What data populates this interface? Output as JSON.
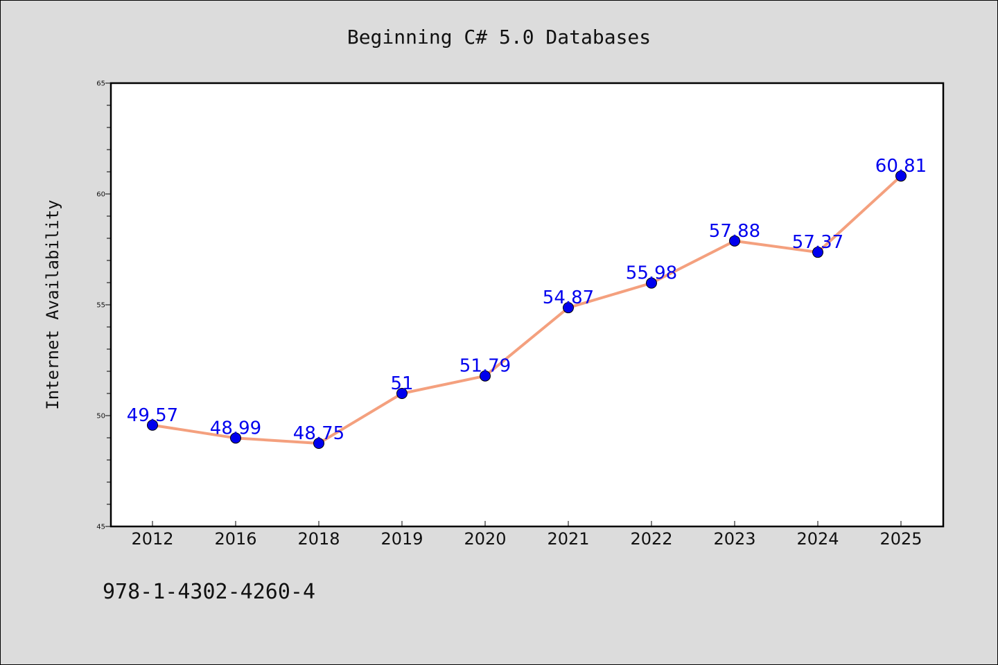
{
  "chart_data": {
    "type": "line",
    "title": "Beginning C# 5.0 Databases",
    "xlabel": "",
    "ylabel": "Internet Availability",
    "categories": [
      "2012",
      "2016",
      "2018",
      "2019",
      "2020",
      "2021",
      "2022",
      "2023",
      "2024",
      "2025"
    ],
    "series": [
      {
        "values": [
          49.57,
          48.99,
          48.75,
          51,
          51.79,
          54.87,
          55.98,
          57.88,
          57.37,
          60.81
        ],
        "labels": [
          "49.57",
          "48.99",
          "48.75",
          "51",
          "51.79",
          "54.87",
          "55.98",
          "57.88",
          "57.37",
          "60.81"
        ]
      }
    ],
    "ylim": [
      45,
      65
    ],
    "yticks": [
      "45",
      "50",
      "55",
      "60",
      "65"
    ],
    "grid": false,
    "legend": "none",
    "colors": {
      "line": "#f4a07e",
      "marker": "#0000ee",
      "label": "#0000ee",
      "background": "#dcdcdc",
      "plot_background": "#ffffff"
    }
  },
  "footnote": "978-1-4302-4260-4"
}
